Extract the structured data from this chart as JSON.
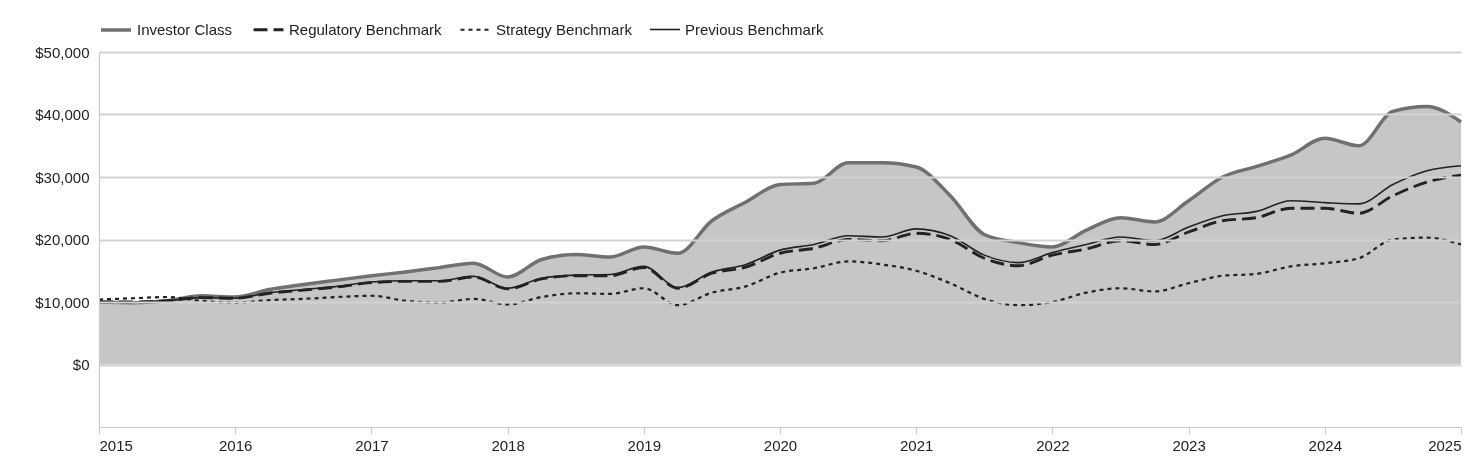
{
  "chart_data": {
    "type": "line",
    "x": [
      2015,
      2015.25,
      2015.5,
      2015.75,
      2016,
      2016.25,
      2016.5,
      2016.75,
      2017,
      2017.25,
      2017.5,
      2017.75,
      2018,
      2018.25,
      2018.5,
      2018.75,
      2019,
      2019.25,
      2019.5,
      2019.75,
      2020,
      2020.25,
      2020.5,
      2020.75,
      2021,
      2021.25,
      2021.5,
      2021.75,
      2022,
      2022.25,
      2022.5,
      2022.75,
      2023,
      2023.25,
      2023.5,
      2023.75,
      2024,
      2024.25,
      2024.5,
      2024.75,
      2025
    ],
    "series": [
      {
        "name": "Investor Class",
        "type": "area",
        "color": "#707070",
        "line_style": "solid",
        "values": [
          10000,
          9900,
          10200,
          11000,
          10800,
          12000,
          12800,
          13500,
          14200,
          14800,
          15500,
          16200,
          14000,
          16800,
          17600,
          17200,
          18800,
          17800,
          23000,
          26000,
          28800,
          29000,
          32300,
          32300,
          31600,
          27000,
          20800,
          19500,
          18800,
          21500,
          23500,
          22800,
          26200,
          30000,
          31700,
          33500,
          36200,
          35000,
          40500,
          41300,
          38800
        ]
      },
      {
        "name": "Regulatory Benchmark",
        "type": "line",
        "color": "#222222",
        "line_style": "dashed",
        "values": [
          10000,
          10000,
          10200,
          10700,
          10600,
          11400,
          11900,
          12400,
          13100,
          13300,
          13300,
          14000,
          12100,
          13700,
          14200,
          14200,
          15500,
          12200,
          14600,
          15600,
          17800,
          18600,
          20000,
          19800,
          21000,
          20000,
          17000,
          15800,
          17500,
          18500,
          19800,
          19200,
          21200,
          23000,
          23500,
          25000,
          25000,
          24200,
          27000,
          29200,
          30300
        ]
      },
      {
        "name": "Strategy Benchmark",
        "type": "line",
        "color": "#222222",
        "line_style": "dotted",
        "values": [
          10400,
          10600,
          10800,
          10200,
          9900,
          10300,
          10500,
          10800,
          11000,
          10200,
          9900,
          10500,
          9600,
          10800,
          11400,
          11300,
          12200,
          9500,
          11500,
          12500,
          14700,
          15400,
          16500,
          16000,
          15000,
          13000,
          10500,
          9500,
          10000,
          11500,
          12200,
          11700,
          13000,
          14200,
          14500,
          15700,
          16200,
          17000,
          20000,
          20300,
          19200
        ]
      },
      {
        "name": "Previous Benchmark",
        "type": "line",
        "color": "#222222",
        "line_style": "solid",
        "values": [
          10000,
          10000,
          10200,
          10700,
          10600,
          11500,
          12000,
          12500,
          13200,
          13400,
          13400,
          14100,
          12200,
          13800,
          14300,
          14400,
          15700,
          12300,
          14800,
          16000,
          18300,
          19200,
          20600,
          20400,
          21700,
          20600,
          17500,
          16300,
          17900,
          19200,
          20400,
          19800,
          22000,
          23800,
          24500,
          26200,
          25900,
          25700,
          28800,
          31000,
          31800
        ]
      }
    ],
    "xlim": [
      2015,
      2025
    ],
    "xticks": [
      2015,
      2016,
      2017,
      2018,
      2019,
      2020,
      2021,
      2022,
      2023,
      2024,
      2025
    ],
    "ylim": [
      -10000,
      50000
    ],
    "yticks": [
      {
        "value": 0,
        "label": "$0"
      },
      {
        "value": 10000,
        "label": "$10,000"
      },
      {
        "value": 20000,
        "label": "$20,000"
      },
      {
        "value": 30000,
        "label": "$30,000"
      },
      {
        "value": 40000,
        "label": "$40,000"
      },
      {
        "value": 50000,
        "label": "$50,000"
      }
    ],
    "grid": "y",
    "legend": "top"
  }
}
